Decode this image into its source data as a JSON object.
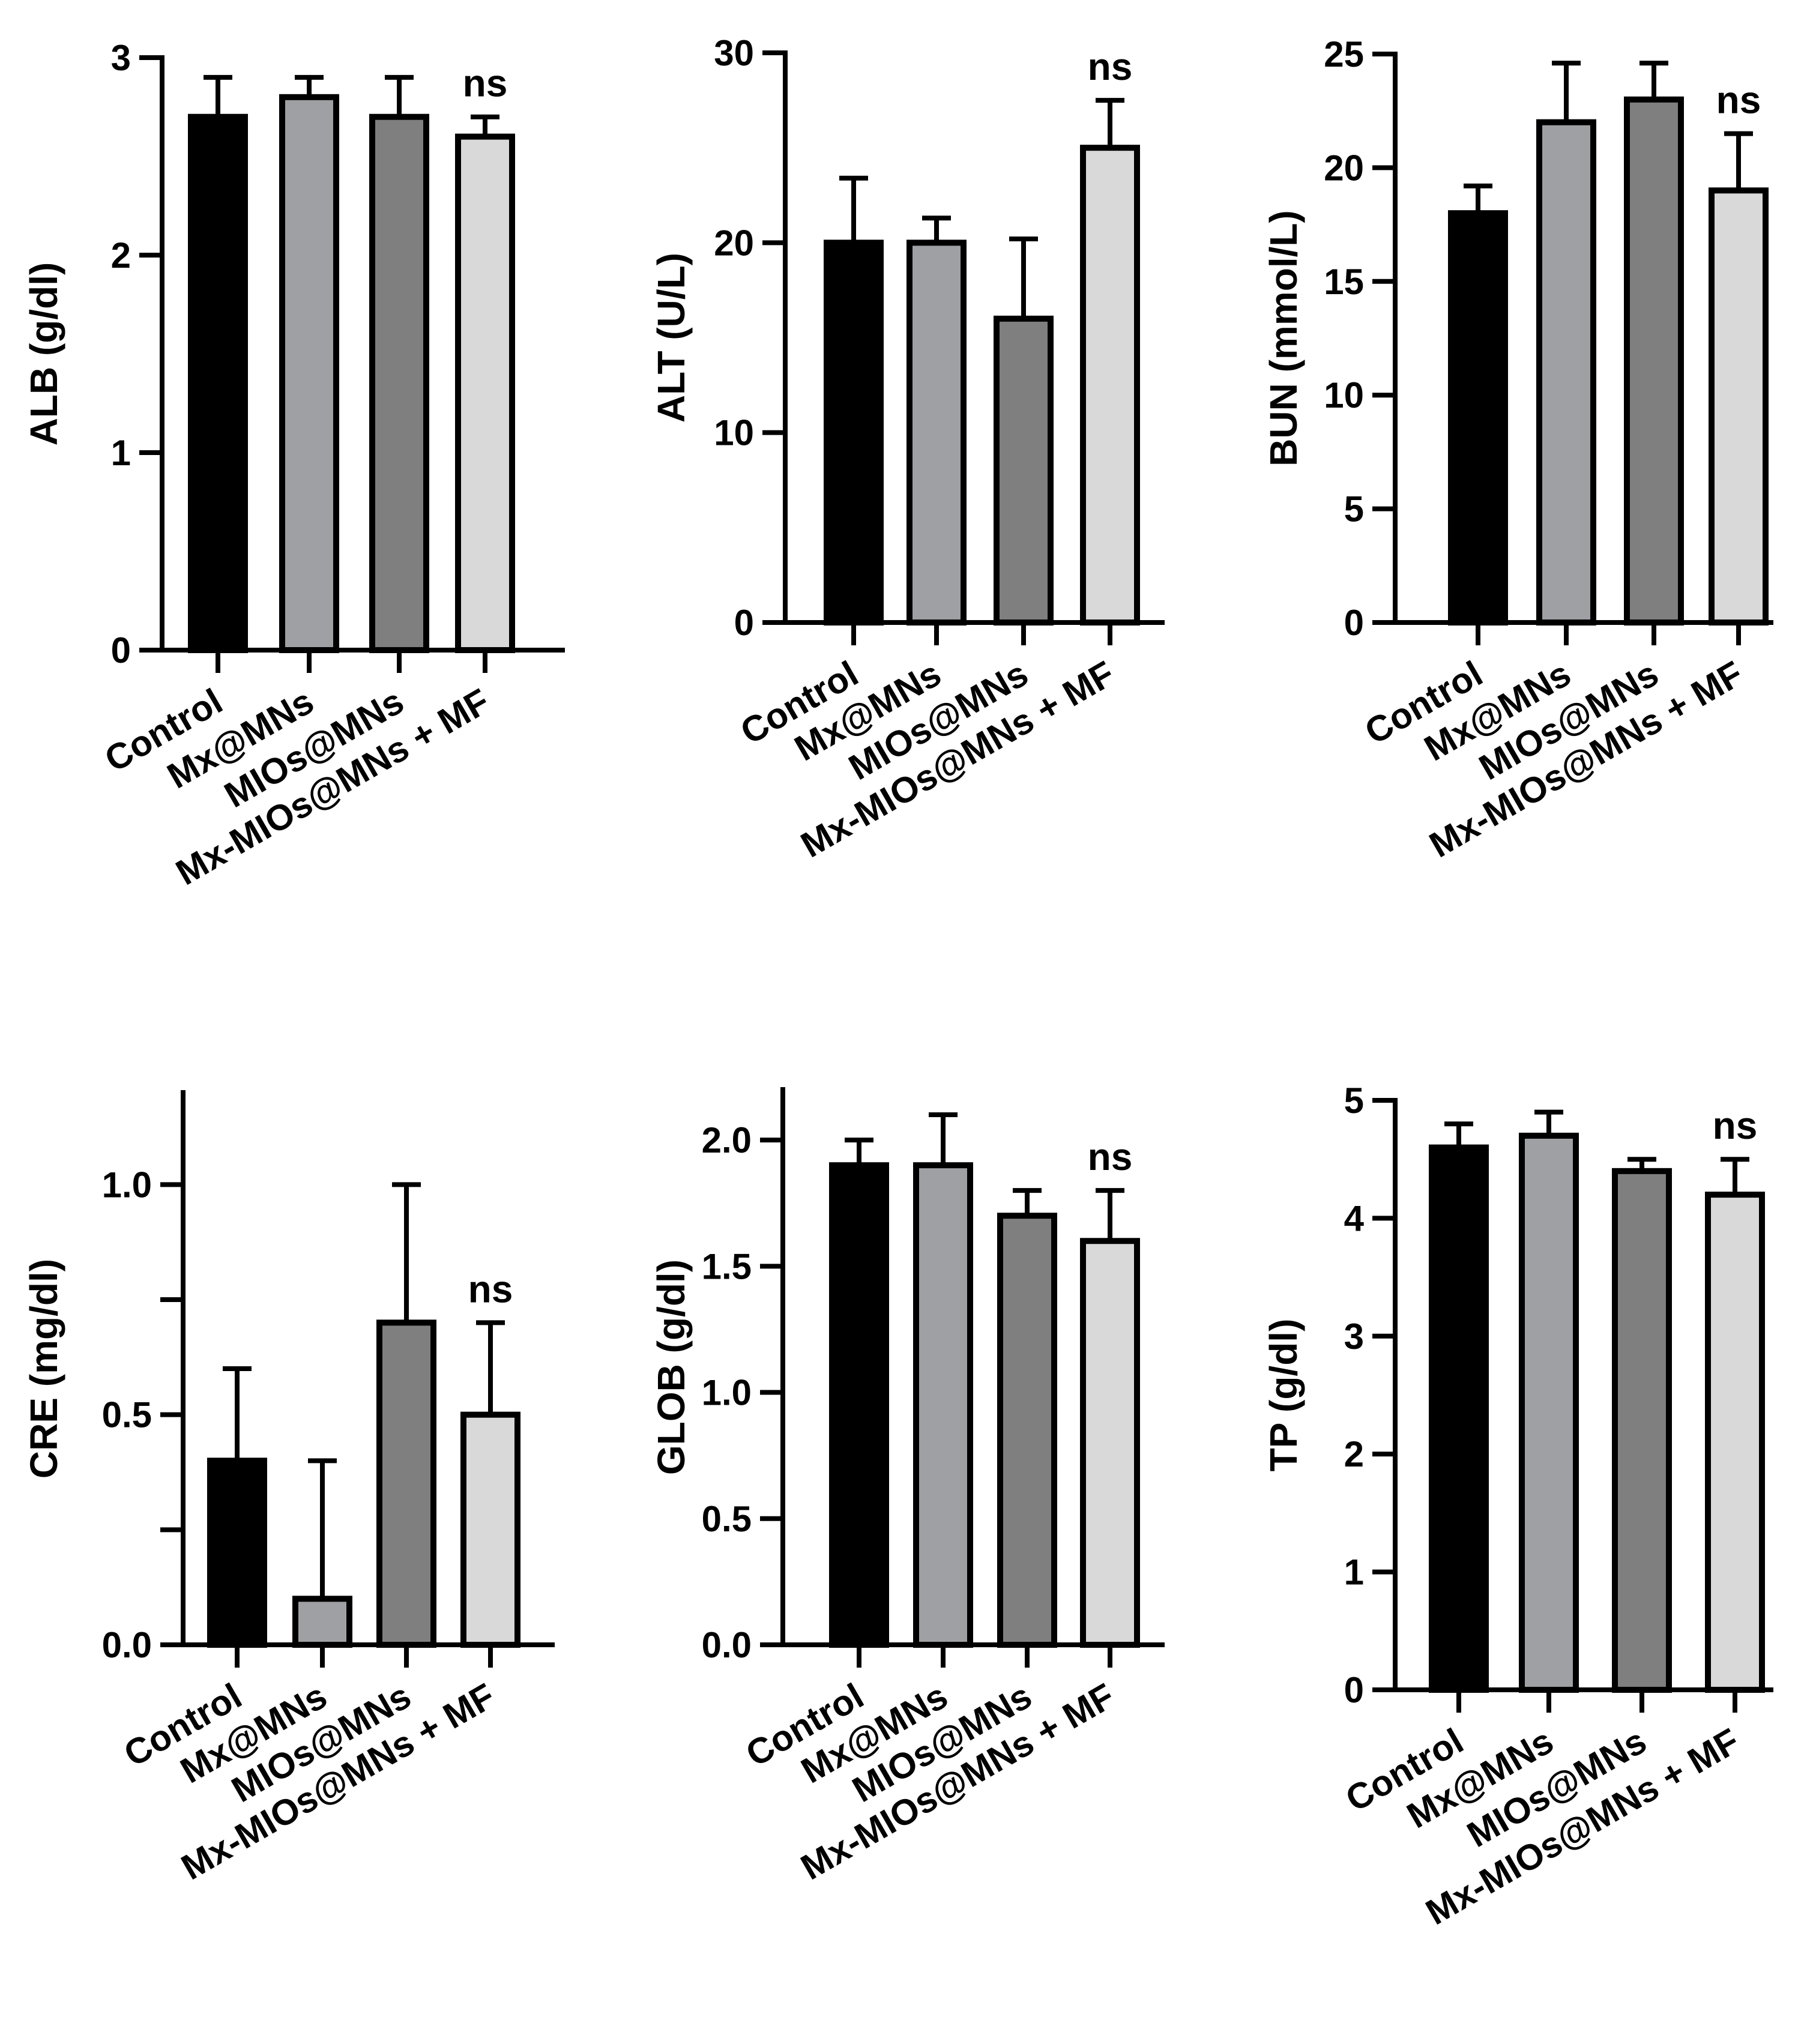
{
  "categories": [
    "Control",
    "Mx@MNs",
    "MIOs@MNs",
    "Mx-MIOs@MNs + MF"
  ],
  "colors": {
    "bars": [
      "#000000",
      "#9fa0a3",
      "#7f7f7f",
      "#d9d9d9"
    ],
    "stroke": "#000000",
    "background": "#ffffff"
  },
  "chart_data": [
    {
      "type": "bar",
      "title": "",
      "ylabel": "ALB (g/dl)",
      "xlabel": "",
      "ylim": [
        0,
        3
      ],
      "yticks": [
        0,
        1,
        2,
        3
      ],
      "ytick_labels": [
        "0",
        "1",
        "2",
        "3"
      ],
      "categories": [
        "Control",
        "Mx@MNs",
        "MIOs@MNs",
        "Mx-MIOs@MNs + MF"
      ],
      "values": [
        2.7,
        2.8,
        2.7,
        2.6
      ],
      "errors": [
        0.2,
        0.1,
        0.2,
        0.1
      ],
      "annotation": "ns"
    },
    {
      "type": "bar",
      "title": "",
      "ylabel": "ALT (U/L)",
      "xlabel": "",
      "ylim": [
        0,
        30
      ],
      "yticks": [
        0,
        10,
        20,
        30
      ],
      "ytick_labels": [
        "0",
        "10",
        "20",
        "30"
      ],
      "categories": [
        "Control",
        "Mx@MNs",
        "MIOs@MNs",
        "Mx-MIOs@MNs + MF"
      ],
      "values": [
        20,
        20,
        16,
        25
      ],
      "errors": [
        3.4,
        1.3,
        4.2,
        2.5
      ],
      "annotation": "ns"
    },
    {
      "type": "bar",
      "title": "",
      "ylabel": "BUN (mmol/L)",
      "xlabel": "",
      "ylim": [
        0,
        25
      ],
      "yticks": [
        0,
        5,
        10,
        15,
        20,
        25
      ],
      "ytick_labels": [
        "0",
        "5",
        "10",
        "15",
        "20",
        "25"
      ],
      "categories": [
        "Control",
        "Mx@MNs",
        "MIOs@MNs",
        "Mx-MIOs@MNs + MF"
      ],
      "values": [
        18,
        22,
        23,
        19
      ],
      "errors": [
        1.2,
        2.6,
        1.6,
        2.5
      ],
      "annotation": "ns"
    },
    {
      "type": "bar",
      "title": "",
      "ylabel": "CRE (mg/dl)",
      "xlabel": "",
      "ylim": [
        0,
        1.2
      ],
      "yticks": [
        0,
        0.25,
        0.5,
        0.75,
        1.0
      ],
      "ytick_labels": [
        "0.0",
        "",
        "0.5",
        "",
        "1.0"
      ],
      "categories": [
        "Control",
        "Mx@MNs",
        "MIOs@MNs",
        "Mx-MIOs@MNs + MF"
      ],
      "values": [
        0.4,
        0.1,
        0.7,
        0.5
      ],
      "errors": [
        0.2,
        0.3,
        0.3,
        0.2
      ],
      "annotation": "ns"
    },
    {
      "type": "bar",
      "title": "",
      "ylabel": "GLOB (g/dl)",
      "xlabel": "",
      "ylim": [
        0,
        2.2
      ],
      "yticks": [
        0,
        0.5,
        1.0,
        1.5,
        2.0
      ],
      "ytick_labels": [
        "0.0",
        "0.5",
        "1.0",
        "1.5",
        "2.0"
      ],
      "categories": [
        "Control",
        "Mx@MNs",
        "MIOs@MNs",
        "Mx-MIOs@MNs + MF"
      ],
      "values": [
        1.9,
        1.9,
        1.7,
        1.6
      ],
      "errors": [
        0.1,
        0.2,
        0.1,
        0.2
      ],
      "annotation": "ns"
    },
    {
      "type": "bar",
      "title": "",
      "ylabel": "TP (g/dl)",
      "xlabel": "",
      "ylim": [
        0,
        5
      ],
      "yticks": [
        0,
        1,
        2,
        3,
        4,
        5
      ],
      "ytick_labels": [
        "0",
        "1",
        "2",
        "3",
        "4",
        "5"
      ],
      "categories": [
        "Control",
        "Mx@MNs",
        "MIOs@MNs",
        "Mx-MIOs@MNs + MF"
      ],
      "values": [
        4.6,
        4.7,
        4.4,
        4.2
      ],
      "errors": [
        0.2,
        0.2,
        0.1,
        0.3
      ],
      "annotation": "ns"
    }
  ]
}
